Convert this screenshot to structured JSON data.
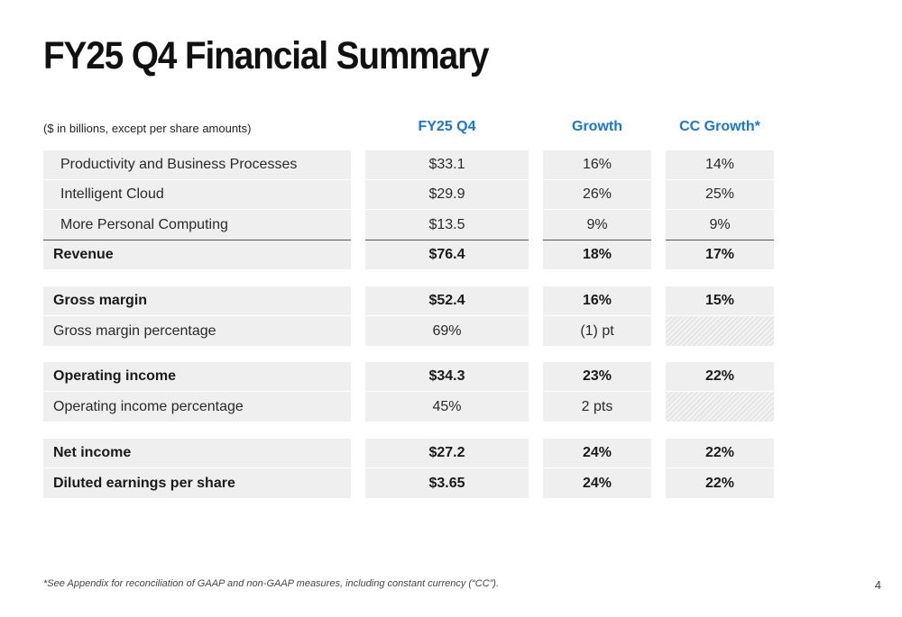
{
  "title": "FY25 Q4 Financial Summary",
  "subtitle": "($ in billions, except per share amounts)",
  "columns": [
    "FY25 Q4",
    "Growth",
    "CC Growth*"
  ],
  "sections": [
    [
      {
        "label": "Productivity and Business Processes",
        "values": [
          "$33.1",
          "16%",
          "14%"
        ]
      },
      {
        "label": "Intelligent Cloud",
        "values": [
          "$29.9",
          "26%",
          "25%"
        ]
      },
      {
        "label": "More Personal Computing",
        "values": [
          "$13.5",
          "9%",
          "9%"
        ]
      },
      {
        "label": "Revenue",
        "values": [
          "$76.4",
          "18%",
          "17%"
        ]
      }
    ],
    [
      {
        "label": "Gross margin",
        "values": [
          "$52.4",
          "16%",
          "15%"
        ]
      },
      {
        "label": "Gross margin percentage",
        "values": [
          "69%",
          "(1) pt",
          ""
        ]
      }
    ],
    [
      {
        "label": "Operating income",
        "values": [
          "$34.3",
          "23%",
          "22%"
        ]
      },
      {
        "label": "Operating income percentage",
        "values": [
          "45%",
          "2 pts",
          ""
        ]
      }
    ],
    [
      {
        "label": "Net income",
        "values": [
          "$27.2",
          "24%",
          "22%"
        ]
      },
      {
        "label": "Diluted earnings per share",
        "values": [
          "$3.65",
          "24%",
          "22%"
        ]
      }
    ]
  ],
  "footnote": "*See Appendix for reconciliation of GAAP and non-GAAP measures, including constant currency (“CC”).",
  "page_number": "4"
}
